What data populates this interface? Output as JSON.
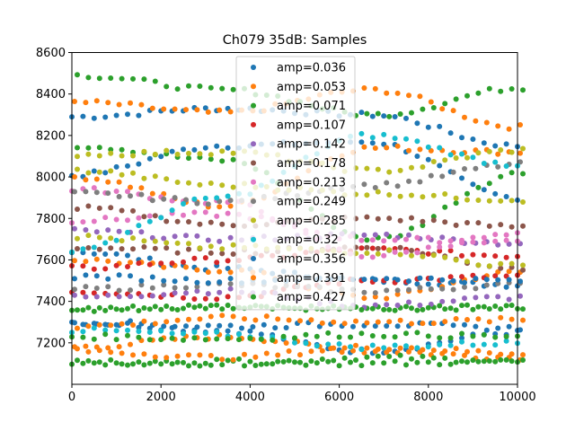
{
  "chart_data": {
    "type": "scatter",
    "title": "Ch079 35dB: Samples",
    "xlabel": "",
    "ylabel": "",
    "xlim": [
      0,
      10000
    ],
    "ylim": [
      7000,
      8600
    ],
    "xticks": [
      0,
      2000,
      4000,
      6000,
      8000,
      10000
    ],
    "xtick_labels": [
      "0",
      "2000",
      "4000",
      "6000",
      "8000",
      "10000"
    ],
    "yticks": [
      7200,
      7400,
      7600,
      7800,
      8000,
      8200,
      8400,
      8600
    ],
    "ytick_labels": [
      "7200",
      "7400",
      "7600",
      "7800",
      "8000",
      "8200",
      "8400",
      "8600"
    ],
    "grid": false,
    "legend_position": "upper-center",
    "sample_step": 250,
    "series": [
      {
        "name": "amp=0.036",
        "color": "#1f77b4",
        "tracks": [
          [
            8290,
            8330,
            8300,
            8150
          ],
          [
            8010,
            8150,
            8170,
            7900
          ],
          [
            7640,
            7560,
            7500,
            7480
          ],
          [
            7300,
            7260,
            7160,
            7250
          ]
        ]
      },
      {
        "name": "amp=0.053",
        "color": "#ff7f0e",
        "tracks": [
          [
            8360,
            8310,
            8420,
            8240
          ],
          [
            8000,
            7860,
            8140,
            8120
          ],
          [
            7600,
            7550,
            7420,
            7540
          ],
          [
            7180,
            7230,
            7160,
            7130
          ]
        ]
      },
      {
        "name": "amp=0.071",
        "color": "#2ca02c",
        "tracks": [
          [
            8490,
            8420,
            8300,
            8430
          ],
          [
            8150,
            8080,
            7700,
            8020
          ],
          [
            7370,
            7370,
            7370,
            7370
          ],
          [
            7110,
            7100,
            7130,
            7110
          ]
        ]
      },
      {
        "name": "amp=0.107",
        "color": "#d62728",
        "tracks": [
          [
            7560,
            7600,
            7650,
            7620
          ],
          [
            7450,
            7420,
            7500,
            7520
          ]
        ]
      },
      {
        "name": "amp=0.142",
        "color": "#9467bd",
        "tracks": [
          [
            7740,
            7700,
            7720,
            7680
          ],
          [
            7420,
            7450,
            7380,
            7420
          ]
        ]
      },
      {
        "name": "amp=0.178",
        "color": "#8c564b",
        "tracks": [
          [
            7850,
            7770,
            7800,
            7760
          ],
          [
            7660,
            7640,
            7660,
            7560
          ]
        ]
      },
      {
        "name": "amp=0.213",
        "color": "#e377c2",
        "tracks": [
          [
            7790,
            7820,
            7700,
            7690
          ],
          [
            7940,
            7880,
            7620,
            7720
          ]
        ]
      },
      {
        "name": "amp=0.249",
        "color": "#7f7f7f",
        "tracks": [
          [
            7920,
            7880,
            7960,
            8060
          ],
          [
            7460,
            7480,
            7450,
            7480
          ]
        ]
      },
      {
        "name": "amp=0.285",
        "color": "#bcbd22",
        "tracks": [
          [
            8110,
            8120,
            8030,
            8130
          ],
          [
            8030,
            7960,
            7920,
            7890
          ],
          [
            7710,
            7660,
            7640,
            7570
          ]
        ]
      },
      {
        "name": "amp=0.32",
        "color": "#17becf",
        "tracks": [
          [
            7650,
            7900,
            8200,
            8060
          ],
          [
            7260,
            7240,
            7180,
            7200
          ]
        ]
      },
      {
        "name": "amp=0.356",
        "color": "#1f77b4",
        "tracks": [
          [
            7300,
            7280,
            7290,
            7270
          ],
          [
            7520,
            7500,
            7510,
            7500
          ]
        ]
      },
      {
        "name": "amp=0.391",
        "color": "#ff7f0e",
        "tracks": [
          [
            7160,
            7130,
            7180,
            7150
          ],
          [
            7280,
            7320,
            7300,
            7310
          ]
        ]
      },
      {
        "name": "amp=0.427",
        "color": "#2ca02c",
        "tracks": [
          [
            7360,
            7370,
            7365,
            7370
          ],
          [
            7100,
            7110,
            7100,
            7110
          ],
          [
            7230,
            7220,
            7240,
            7230
          ]
        ]
      }
    ]
  }
}
